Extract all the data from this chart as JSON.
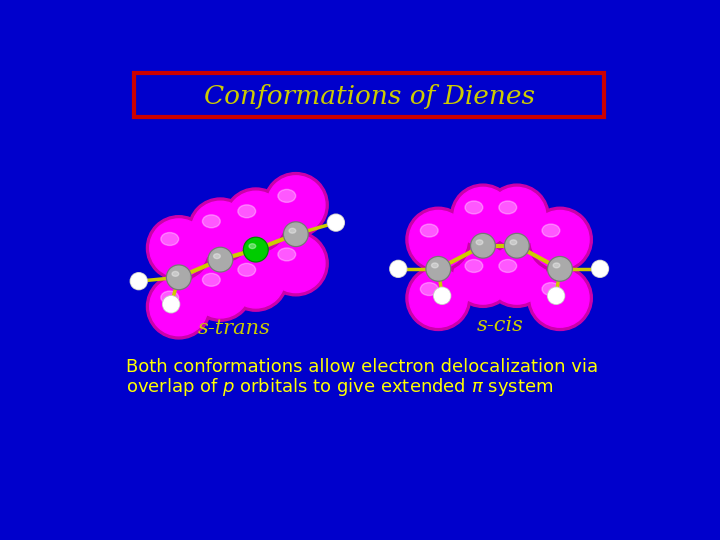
{
  "background_color": "#0000CC",
  "title_text": "Conformations of Dienes",
  "title_color": "#CCCC00",
  "title_box_edge_color": "#CC0000",
  "title_box_face_color": "#0000CC",
  "label_strans": "s-trans",
  "label_scis": "s-cis",
  "label_color": "#CCCC00",
  "body_text_line1": "Both conformations allow electron delocalization via",
  "body_text_line2": "overlap of $p$ orbitals to give extended $\\pi$ system",
  "body_text_color": "#FFFF00",
  "magenta": "#FF00FF",
  "magenta_dark": "#CC00AA",
  "gray_carbon": "#AAAAAA",
  "gray_carbon_dark": "#777777",
  "white_h": "#FFFFFF",
  "white_h_dark": "#CCCCCC",
  "green_special": "#00CC00",
  "green_dark": "#008800",
  "bond_color": "#CCCC00",
  "bond_dark": "#888800"
}
